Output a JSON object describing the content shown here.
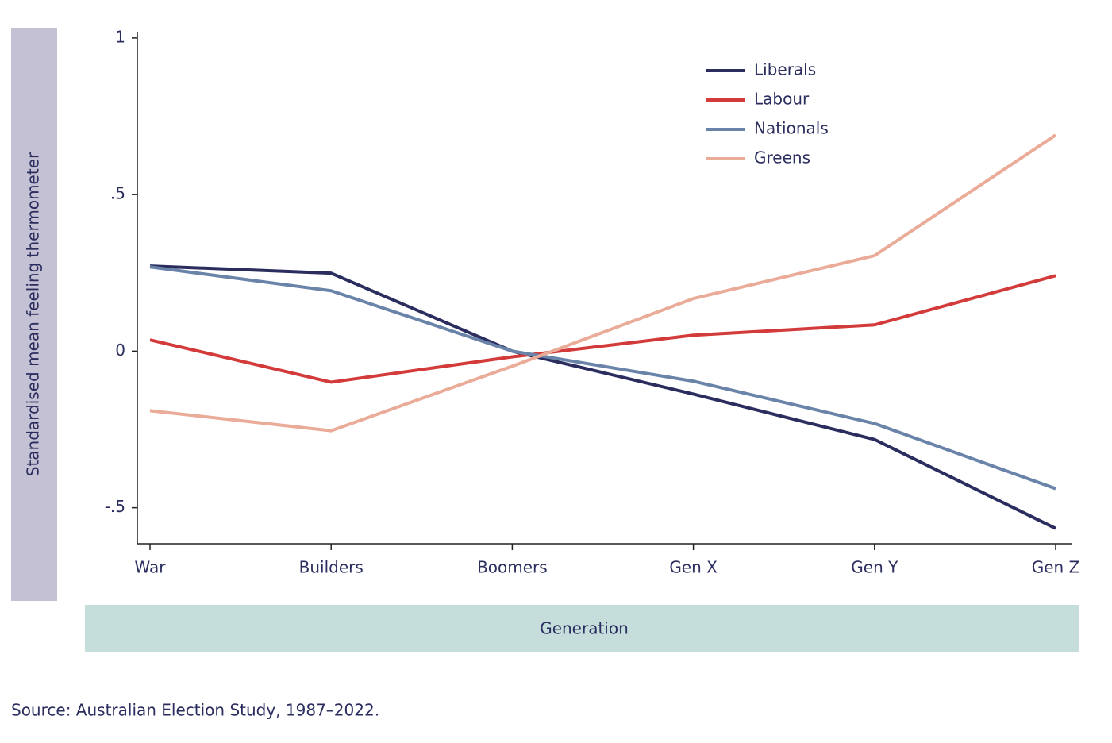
{
  "chart_data": {
    "type": "line",
    "y_label": "Standardised mean feeling thermometer",
    "x_label": "Generation",
    "source": "Source: Australian Election Study, 1987–2022.",
    "categories": [
      "War",
      "Builders",
      "Boomers",
      "Gen X",
      "Gen Y",
      "Gen Z"
    ],
    "series": [
      {
        "name": "Liberals",
        "color": "#2a2d5e",
        "values": [
          0.272,
          0.249,
          0.0,
          -0.137,
          -0.282,
          -0.566
        ]
      },
      {
        "name": "Labour",
        "color": "#d33a3a",
        "values": [
          0.036,
          -0.099,
          -0.018,
          0.051,
          0.084,
          0.241
        ]
      },
      {
        "name": "Nationals",
        "color": "#6a84a9",
        "values": [
          0.269,
          0.193,
          0.0,
          -0.096,
          -0.231,
          -0.439
        ]
      },
      {
        "name": "Greens",
        "color": "#eaab98",
        "values": [
          -0.19,
          -0.254,
          -0.048,
          0.168,
          0.305,
          0.69
        ]
      }
    ],
    "ylim": [
      -0.615,
      1.02
    ],
    "yticks": [
      {
        "value": -0.5,
        "label": "-.5"
      },
      0,
      {
        "value": 0.5,
        "label": ".5"
      },
      1
    ]
  }
}
